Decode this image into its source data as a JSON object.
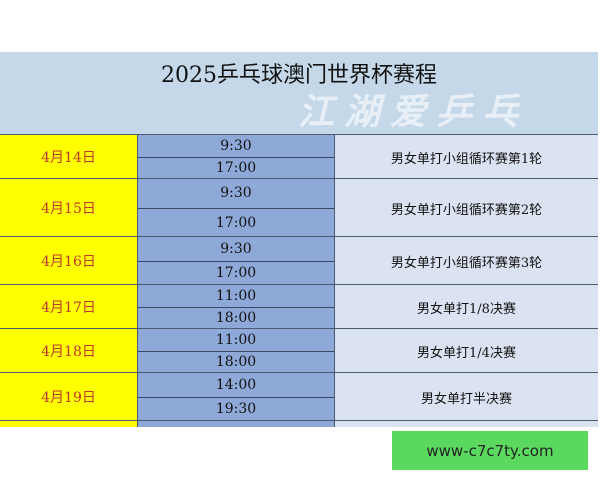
{
  "title": "2025乒乓球澳门世界杯赛程",
  "watermark": "江湖爱乒乓",
  "rows": [
    {
      "date": "4月14日",
      "times": [
        "9:30",
        "17:00"
      ],
      "event": "男女单打小组循环赛第1轮"
    },
    {
      "date": "4月15日",
      "times": [
        "9:30",
        "17:00"
      ],
      "event": "男女单打小组循环赛第2轮"
    },
    {
      "date": "4月16日",
      "times": [
        "9:30",
        "17:00"
      ],
      "event": "男女单打小组循环赛第3轮"
    },
    {
      "date": "4月17日",
      "times": [
        "11:00",
        "18:00"
      ],
      "event": "男女单打1/8决赛"
    },
    {
      "date": "4月18日",
      "times": [
        "11:00",
        "18:00"
      ],
      "event": "男女单打1/4决赛"
    },
    {
      "date": "4月19日",
      "times": [
        "14:00",
        "19:30"
      ],
      "event": "男女单打半决赛"
    }
  ],
  "ad": "www-c7c7ty.com"
}
